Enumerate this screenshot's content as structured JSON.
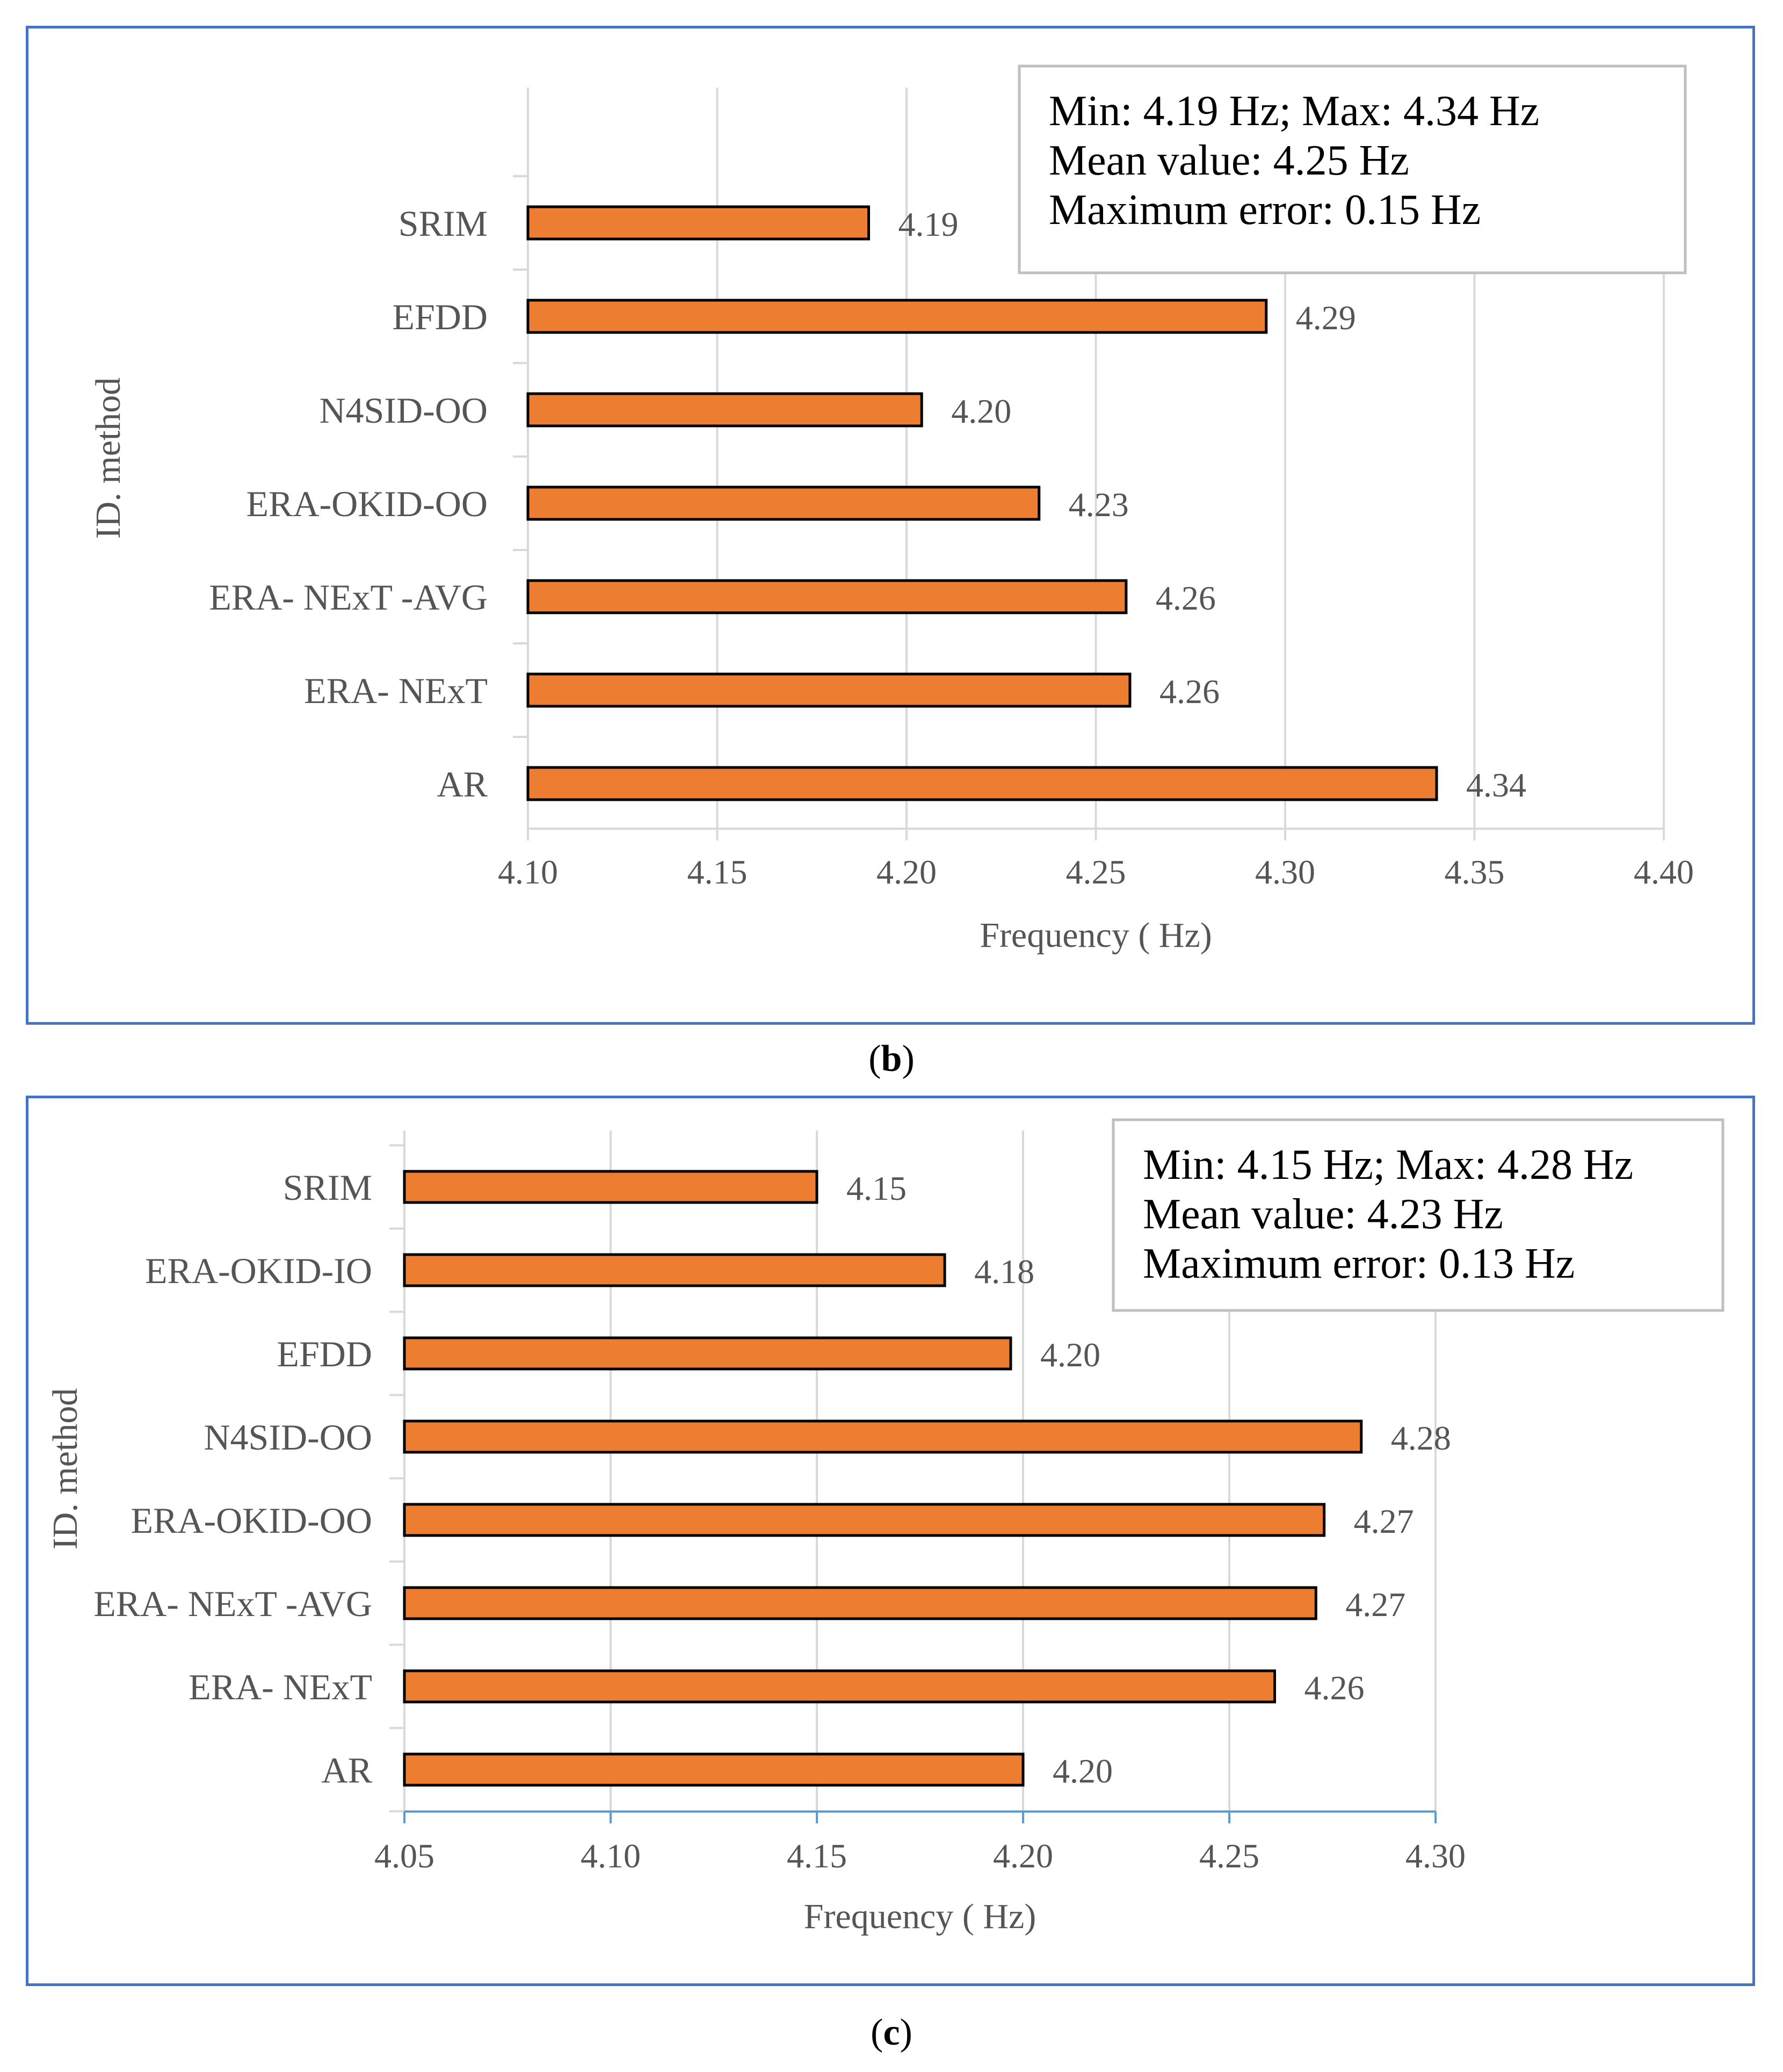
{
  "chart_data": [
    {
      "id": "b",
      "type": "bar",
      "orientation": "horizontal",
      "caption_letter": "b",
      "categories": [
        "SRIM",
        "EFDD",
        "N4SID-OO",
        "ERA-OKID-OO",
        "ERA- NExT -AVG",
        "ERA- NExT",
        "AR"
      ],
      "values": [
        4.19,
        4.295,
        4.204,
        4.235,
        4.258,
        4.259,
        4.34
      ],
      "labels": [
        "4.19",
        "4.29",
        "4.20",
        "4.23",
        "4.26",
        "4.26",
        "4.34"
      ],
      "xlim": [
        4.1,
        4.4
      ],
      "xticks": [
        "4.10",
        "4.15",
        "4.20",
        "4.25",
        "4.30",
        "4.35",
        "4.40"
      ],
      "xlabel": "Frequency ( Hz)",
      "ylabel": "ID. method",
      "grid": true,
      "bar_color": "#ed7d31",
      "info_box": [
        "Min:  4.19 Hz; Max:  4.34 Hz",
        "Mean value:  4.25 Hz",
        "Maximum  error: 0.15 Hz"
      ],
      "info_box_placement": "top-right"
    },
    {
      "id": "c",
      "type": "bar",
      "orientation": "horizontal",
      "caption_letter": "c",
      "categories": [
        "SRIM",
        "ERA-OKID-IO",
        "EFDD",
        "N4SID-OO",
        "ERA-OKID-OO",
        "ERA- NExT -AVG",
        "ERA- NExT",
        "AR"
      ],
      "values": [
        4.15,
        4.181,
        4.197,
        4.282,
        4.273,
        4.271,
        4.261,
        4.2
      ],
      "labels": [
        "4.15",
        "4.18",
        "4.20",
        "4.28",
        "4.27",
        "4.27",
        "4.26",
        "4.20"
      ],
      "xlim": [
        4.05,
        4.3
      ],
      "xticks": [
        "4.05",
        "4.10",
        "4.15",
        "4.20",
        "4.25",
        "4.30"
      ],
      "xlabel": "Frequency ( Hz)",
      "ylabel": "ID. method",
      "grid": true,
      "bar_color": "#ed7d31",
      "info_box": [
        "Min:  4.15 Hz; Max:  4.28 Hz",
        "Mean value:  4.23 Hz",
        "Maximum  error: 0.13 Hz"
      ],
      "info_box_placement": "top-right"
    }
  ],
  "colors": {
    "panel_border": "#4472c4",
    "bar_fill": "#ed7d31",
    "grid": "#d9d9d9"
  }
}
